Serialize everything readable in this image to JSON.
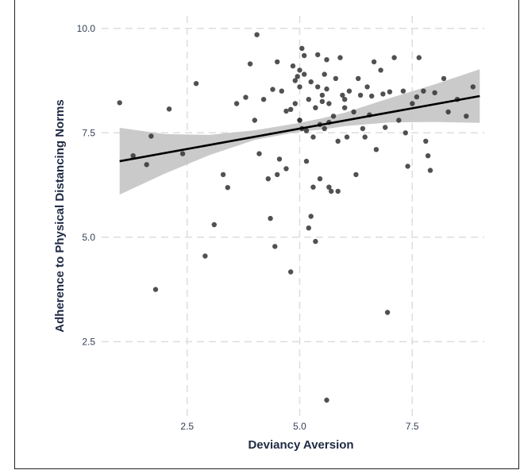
{
  "chart_data": {
    "type": "scatter",
    "xlabel": "Deviancy Aversion",
    "ylabel": "Adherence to Physical Distancing Norms",
    "xlim": [
      0.6,
      9.1
    ],
    "ylim": [
      0.7,
      10.3
    ],
    "xticks": [
      2.5,
      5.0,
      7.5
    ],
    "xtick_labels": [
      "2.5",
      "5.0",
      "7.5"
    ],
    "yticks": [
      2.5,
      5.0,
      7.5,
      10.0
    ],
    "ytick_labels": [
      "2.5",
      "5.0",
      "7.5",
      "10.0"
    ],
    "grid": true,
    "legend": "none",
    "colors": {
      "point": "#333333",
      "line": "#000000",
      "band": "#c4c4c4",
      "grid": "#dddddd"
    },
    "regression": {
      "x": [
        1.0,
        9.0
      ],
      "y": [
        6.82,
        8.38
      ]
    },
    "confidence_band": {
      "x": [
        1.0,
        2.0,
        3.0,
        4.0,
        5.0,
        5.5,
        6.0,
        7.0,
        8.0,
        9.0
      ],
      "lower": [
        6.02,
        6.52,
        6.97,
        7.33,
        7.53,
        7.58,
        7.66,
        7.75,
        7.76,
        7.74
      ],
      "upper": [
        7.62,
        7.47,
        7.45,
        7.56,
        7.74,
        7.85,
        7.98,
        8.33,
        8.66,
        9.02
      ]
    },
    "points": [
      [
        1.0,
        8.22
      ],
      [
        1.3,
        6.95
      ],
      [
        1.6,
        6.74
      ],
      [
        1.7,
        7.42
      ],
      [
        1.8,
        3.75
      ],
      [
        2.1,
        8.07
      ],
      [
        2.4,
        7.0
      ],
      [
        2.7,
        8.68
      ],
      [
        2.9,
        4.55
      ],
      [
        3.1,
        5.3
      ],
      [
        3.3,
        6.5
      ],
      [
        3.4,
        6.19
      ],
      [
        3.6,
        8.2
      ],
      [
        3.8,
        8.35
      ],
      [
        3.9,
        9.15
      ],
      [
        4.0,
        7.8
      ],
      [
        4.05,
        9.85
      ],
      [
        4.1,
        7.0
      ],
      [
        4.2,
        8.3
      ],
      [
        4.3,
        6.4
      ],
      [
        4.35,
        5.45
      ],
      [
        4.4,
        8.54
      ],
      [
        4.45,
        4.78
      ],
      [
        4.5,
        9.2
      ],
      [
        4.5,
        6.5
      ],
      [
        4.55,
        6.87
      ],
      [
        4.6,
        8.5
      ],
      [
        4.7,
        6.64
      ],
      [
        4.7,
        8.02
      ],
      [
        4.8,
        8.06
      ],
      [
        4.8,
        4.17
      ],
      [
        4.85,
        9.1
      ],
      [
        4.9,
        8.2
      ],
      [
        4.9,
        8.75
      ],
      [
        4.95,
        8.85
      ],
      [
        5.0,
        9.0
      ],
      [
        5.0,
        7.8
      ],
      [
        5.0,
        8.6
      ],
      [
        5.05,
        9.52
      ],
      [
        5.05,
        7.6
      ],
      [
        5.1,
        8.9
      ],
      [
        5.1,
        9.35
      ],
      [
        5.15,
        6.82
      ],
      [
        5.15,
        7.55
      ],
      [
        5.2,
        8.3
      ],
      [
        5.2,
        5.22
      ],
      [
        5.25,
        5.5
      ],
      [
        5.25,
        8.72
      ],
      [
        5.3,
        7.4
      ],
      [
        5.3,
        6.2
      ],
      [
        5.35,
        8.1
      ],
      [
        5.4,
        8.6
      ],
      [
        5.4,
        9.37
      ],
      [
        5.45,
        6.4
      ],
      [
        5.45,
        7.7
      ],
      [
        5.5,
        8.4
      ],
      [
        5.5,
        8.25
      ],
      [
        5.55,
        8.9
      ],
      [
        5.55,
        7.6
      ],
      [
        5.6,
        8.55
      ],
      [
        5.6,
        9.25
      ],
      [
        5.65,
        8.2
      ],
      [
        5.65,
        7.75
      ],
      [
        5.7,
        6.1
      ],
      [
        5.75,
        7.9
      ],
      [
        5.8,
        8.8
      ],
      [
        5.85,
        7.3
      ],
      [
        5.85,
        6.1
      ],
      [
        5.9,
        9.3
      ],
      [
        5.95,
        8.4
      ],
      [
        6.0,
        8.1
      ],
      [
        6.05,
        7.4
      ],
      [
        6.1,
        8.5
      ],
      [
        6.2,
        8.0
      ],
      [
        6.25,
        6.5
      ],
      [
        6.3,
        8.8
      ],
      [
        6.35,
        8.4
      ],
      [
        6.4,
        7.6
      ],
      [
        6.45,
        7.4
      ],
      [
        6.5,
        8.6
      ],
      [
        6.55,
        7.93
      ],
      [
        6.6,
        8.38
      ],
      [
        6.65,
        9.2
      ],
      [
        6.7,
        7.1
      ],
      [
        6.8,
        9.0
      ],
      [
        6.85,
        8.43
      ],
      [
        6.9,
        7.63
      ],
      [
        6.95,
        3.2
      ],
      [
        7.0,
        8.48
      ],
      [
        7.1,
        9.3
      ],
      [
        7.2,
        7.8
      ],
      [
        7.3,
        8.5
      ],
      [
        7.35,
        7.5
      ],
      [
        7.4,
        6.7
      ],
      [
        7.5,
        8.2
      ],
      [
        7.6,
        8.36
      ],
      [
        7.65,
        9.3
      ],
      [
        7.75,
        8.5
      ],
      [
        7.8,
        7.3
      ],
      [
        7.85,
        6.95
      ],
      [
        7.9,
        6.6
      ],
      [
        8.0,
        8.46
      ],
      [
        8.2,
        8.8
      ],
      [
        8.3,
        8.0
      ],
      [
        8.5,
        8.3
      ],
      [
        8.7,
        7.9
      ],
      [
        8.85,
        8.6
      ],
      [
        5.6,
        1.1
      ],
      [
        5.35,
        4.9
      ],
      [
        5.65,
        6.2
      ],
      [
        6.0,
        8.3
      ],
      [
        5.0,
        7.8
      ]
    ]
  }
}
